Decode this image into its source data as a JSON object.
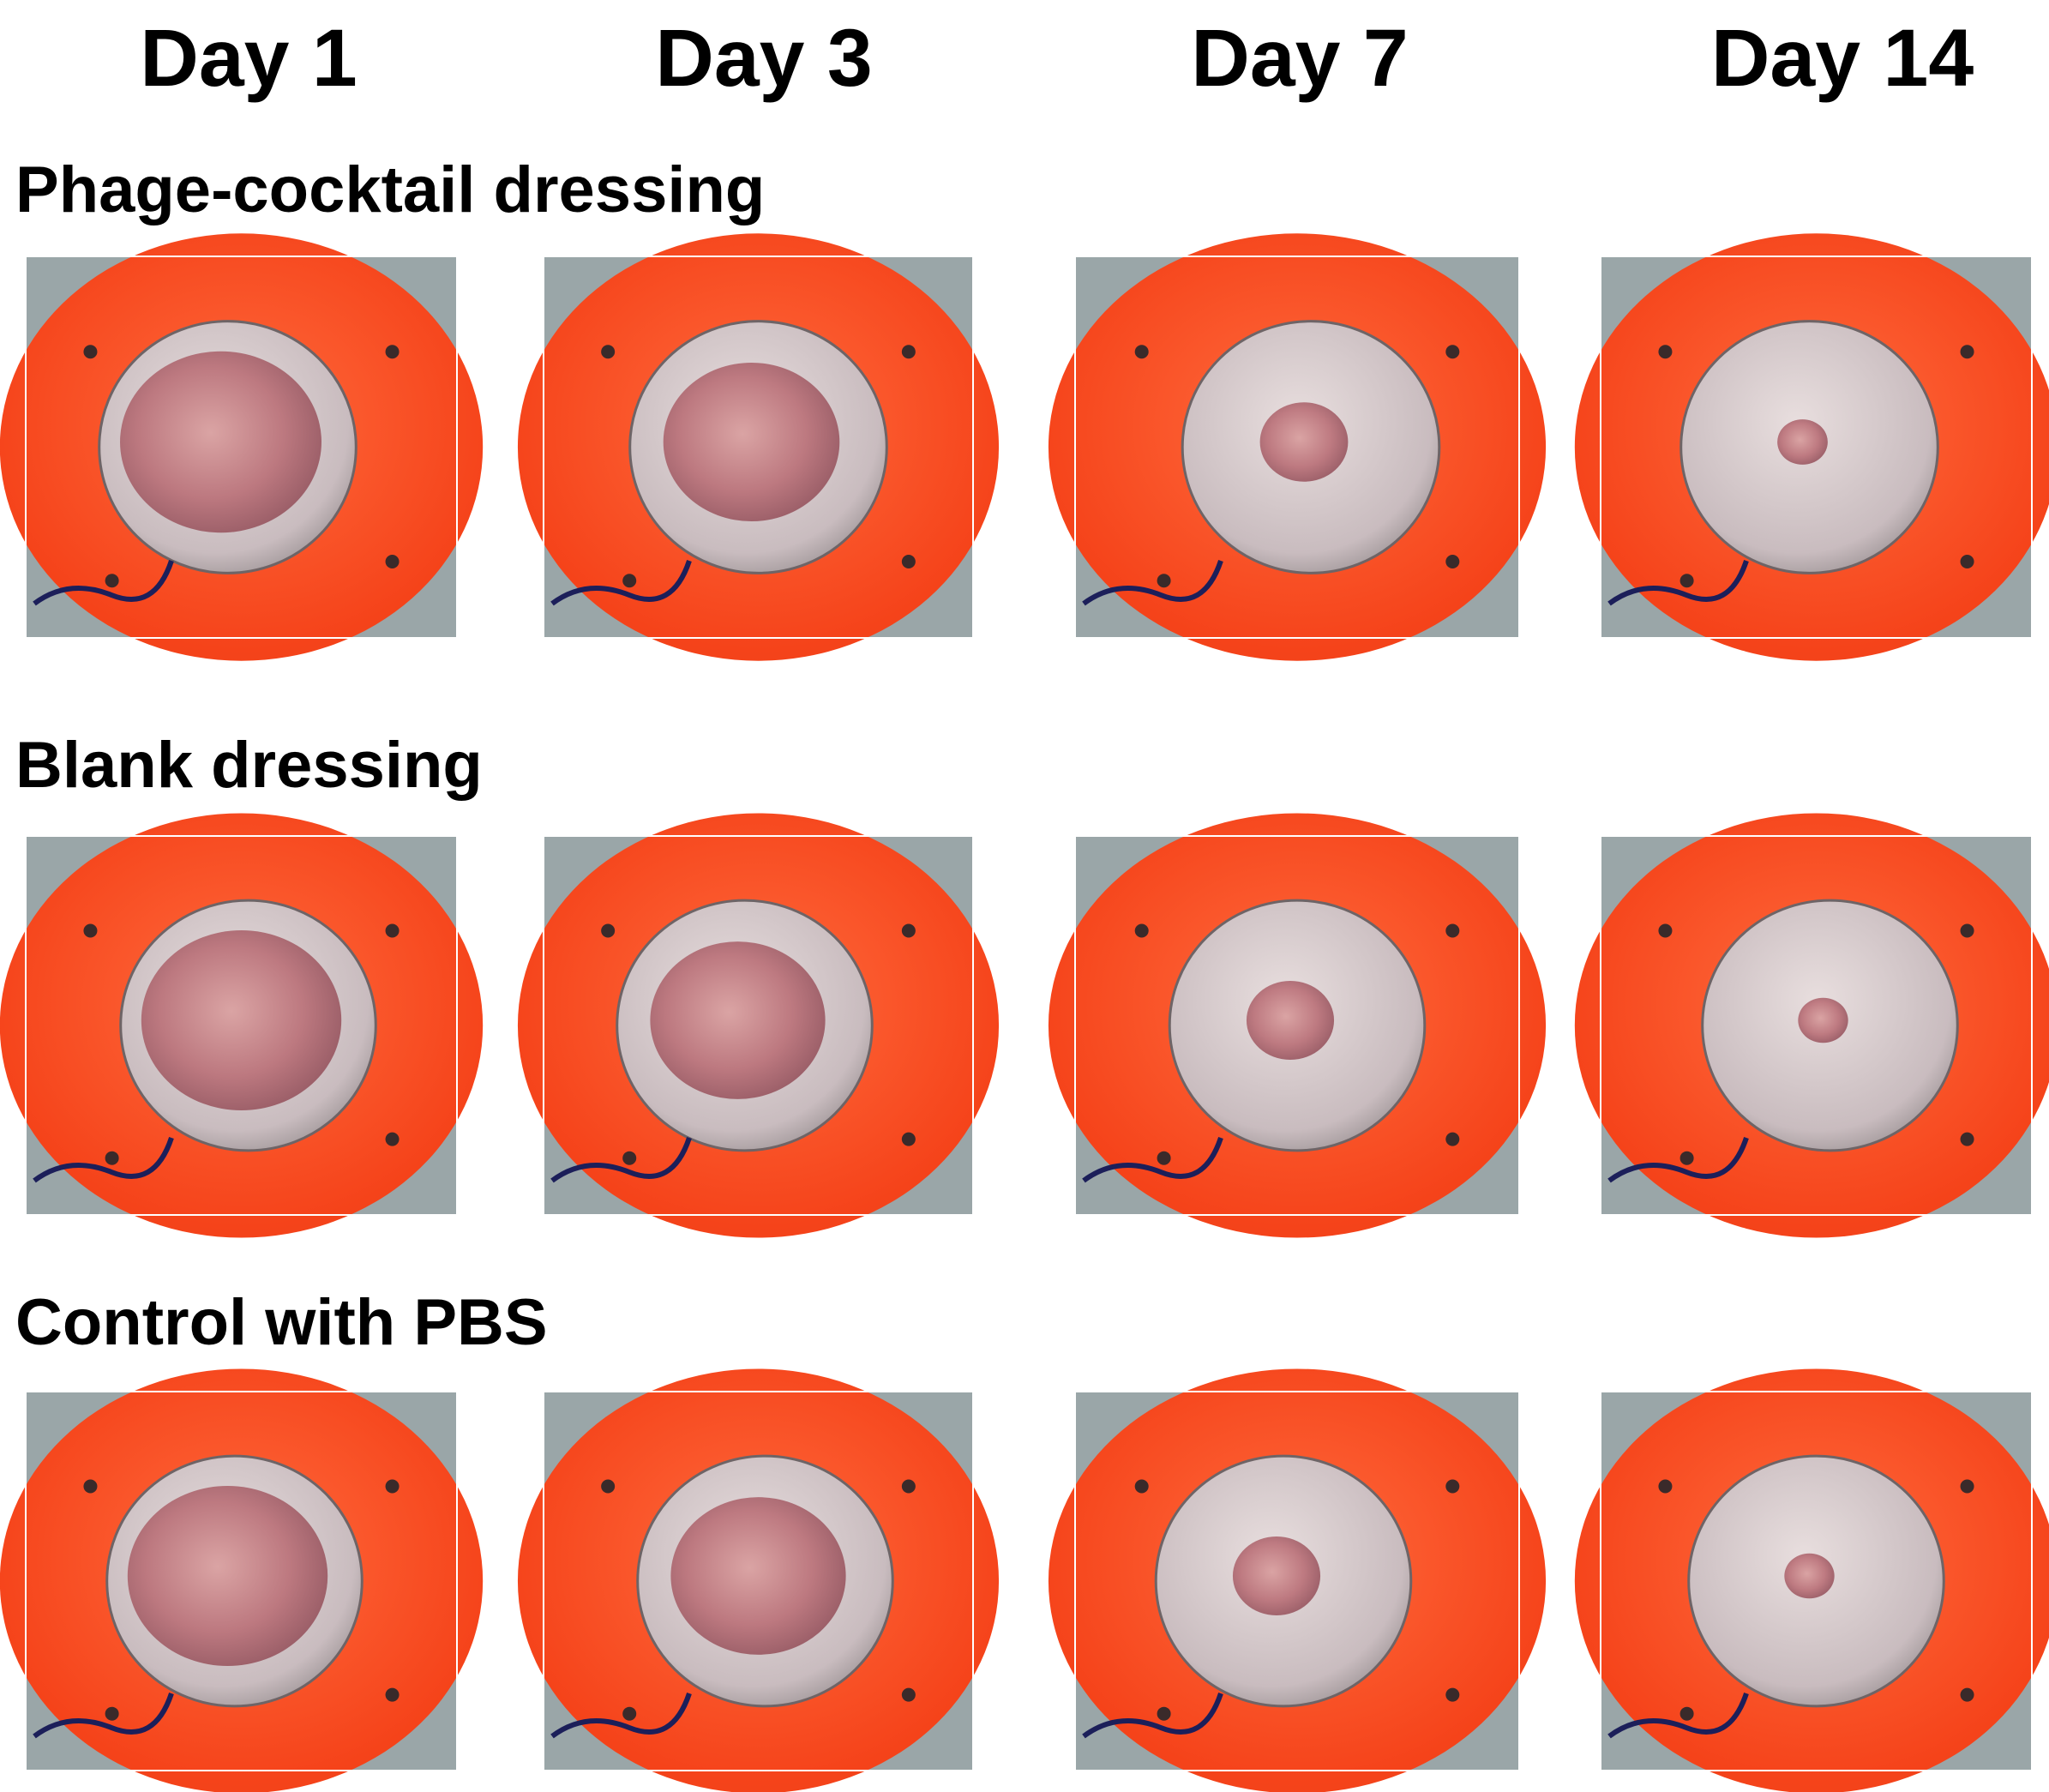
{
  "header": {
    "columns": [
      "Day 1",
      "Day 3",
      "Day 7",
      "Day 14"
    ]
  },
  "rows": [
    {
      "label": "Phage-cocktail dressing"
    },
    {
      "label": "Blank dressing"
    },
    {
      "label": "Control with PBS"
    }
  ]
}
